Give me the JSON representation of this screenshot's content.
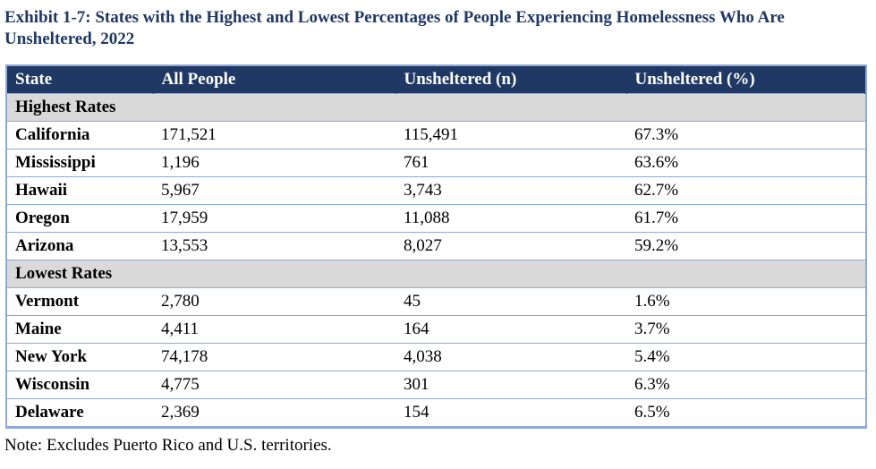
{
  "title": "Exhibit 1-7: States with the Highest and Lowest Percentages of People Experiencing Homelessness Who Are Unsheltered, 2022",
  "columns": [
    "State",
    "All People",
    "Unsheltered (n)",
    "Unsheltered (%)"
  ],
  "sections": [
    {
      "label": "Highest Rates",
      "rows": [
        {
          "state": "California",
          "all": "171,521",
          "n": "115,491",
          "pct": "67.3%"
        },
        {
          "state": "Mississippi",
          "all": "1,196",
          "n": "761",
          "pct": "63.6%"
        },
        {
          "state": "Hawaii",
          "all": "5,967",
          "n": "3,743",
          "pct": "62.7%"
        },
        {
          "state": "Oregon",
          "all": "17,959",
          "n": "11,088",
          "pct": "61.7%"
        },
        {
          "state": "Arizona",
          "all": "13,553",
          "n": "8,027",
          "pct": "59.2%"
        }
      ]
    },
    {
      "label": "Lowest Rates",
      "rows": [
        {
          "state": "Vermont",
          "all": "2,780",
          "n": "45",
          "pct": "1.6%"
        },
        {
          "state": "Maine",
          "all": "4,411",
          "n": "164",
          "pct": "3.7%"
        },
        {
          "state": "New York",
          "all": "74,178",
          "n": "4,038",
          "pct": "5.4%"
        },
        {
          "state": "Wisconsin",
          "all": "4,775",
          "n": "301",
          "pct": "6.3%"
        },
        {
          "state": "Delaware",
          "all": "2,369",
          "n": "154",
          "pct": "6.5%"
        }
      ]
    }
  ],
  "note": "Note: Excludes Puerto Rico and U.S. territories."
}
